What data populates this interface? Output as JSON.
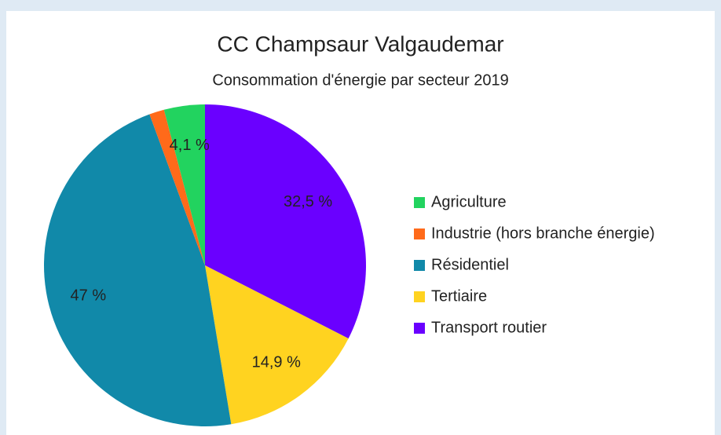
{
  "chart_data": {
    "type": "pie",
    "title": "CC Champsaur Valgaudemar",
    "subtitle": "Consommation d'énergie par secteur 2019",
    "categories": [
      "Agriculture",
      "Industrie (hors branche énergie)",
      "Résidentiel",
      "Tertiaire",
      "Transport routier"
    ],
    "values": [
      4.1,
      1.5,
      47,
      14.9,
      32.5
    ],
    "value_labels": [
      "4,1 %",
      null,
      "47 %",
      "14,9 %",
      "32,5 %"
    ],
    "colors": [
      "#22d35f",
      "#ff6a1a",
      "#1189a9",
      "#ffd320",
      "#6a00ff"
    ],
    "legend": "right"
  }
}
